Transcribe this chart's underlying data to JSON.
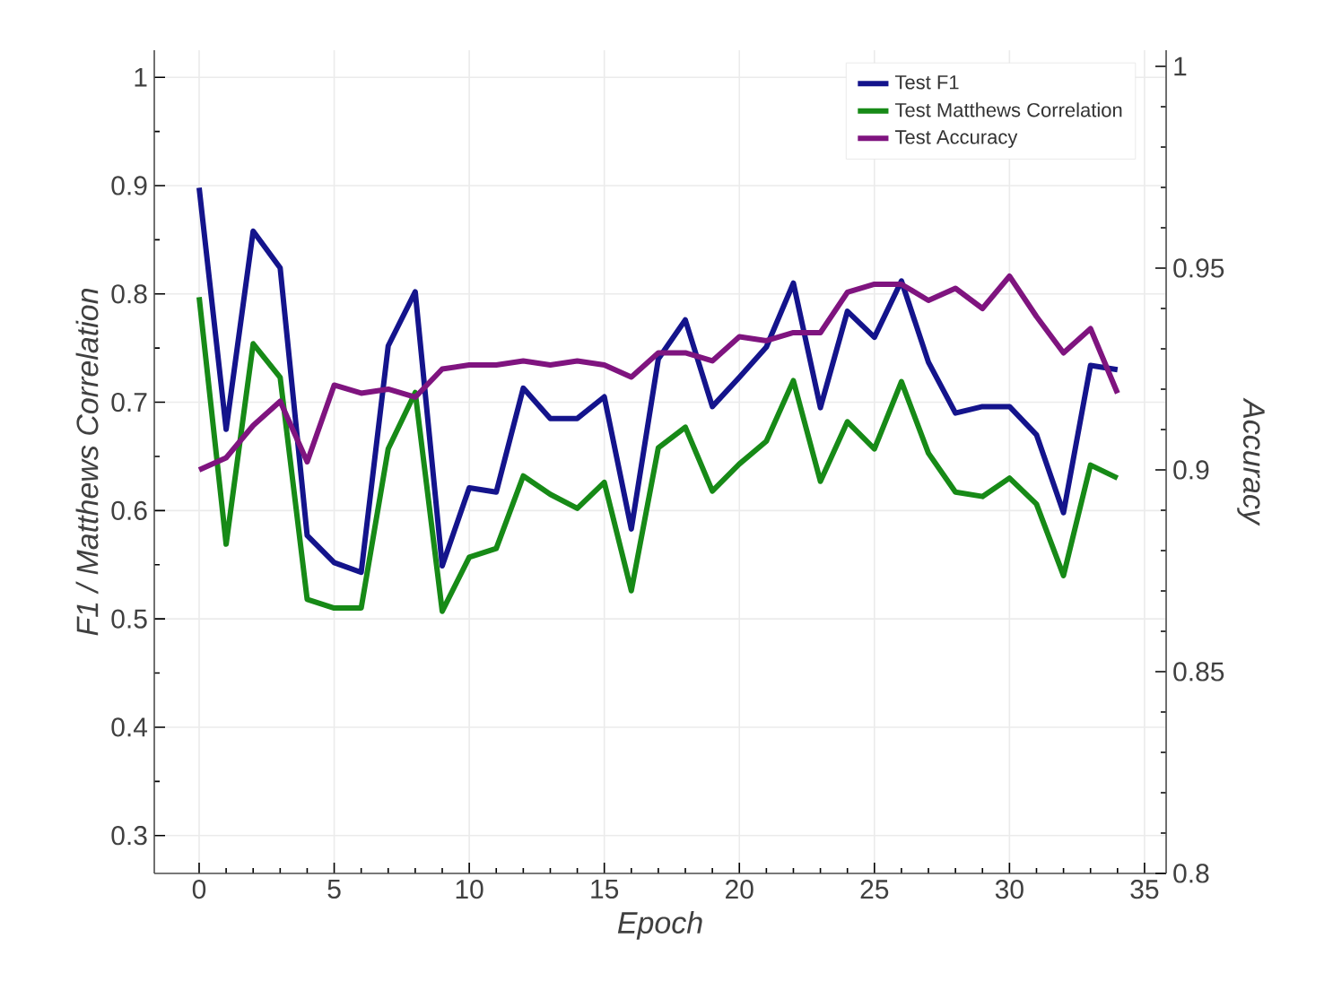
{
  "chart_data": {
    "type": "line",
    "xlabel": "Epoch",
    "ylabel": "F1 / Matthews Correlation",
    "y2label": "Accuracy",
    "x": [
      0,
      1,
      2,
      3,
      4,
      5,
      6,
      7,
      8,
      9,
      10,
      11,
      12,
      13,
      14,
      15,
      16,
      17,
      18,
      19,
      20,
      21,
      22,
      23,
      24,
      25,
      26,
      27,
      28,
      29,
      30,
      31,
      32,
      33,
      34
    ],
    "series": [
      {
        "name": "Test F1",
        "color": "#14148c",
        "values": [
          0.898,
          0.675,
          0.858,
          0.824,
          0.577,
          0.552,
          0.543,
          0.752,
          0.802,
          0.549,
          0.621,
          0.617,
          0.713,
          0.685,
          0.685,
          0.705,
          0.583,
          0.74,
          0.776,
          0.696,
          0.723,
          0.751,
          0.81,
          0.695,
          0.784,
          0.76,
          0.812,
          0.737,
          0.69,
          0.696,
          0.696,
          0.67,
          0.598,
          0.734,
          0.73
        ]
      },
      {
        "name": "Test Matthews Correlation",
        "color": "#178a17",
        "values": [
          0.797,
          0.569,
          0.754,
          0.723,
          0.518,
          0.51,
          0.51,
          0.657,
          0.709,
          0.507,
          0.557,
          0.565,
          0.632,
          0.615,
          0.602,
          0.626,
          0.526,
          0.658,
          0.677,
          0.618,
          0.643,
          0.664,
          0.72,
          0.627,
          0.682,
          0.657,
          0.719,
          0.653,
          0.617,
          0.613,
          0.63,
          0.606,
          0.54,
          0.642,
          0.63
        ]
      },
      {
        "name": "Test Accuracy",
        "color": "#7f147f",
        "axis": "y2",
        "values": [
          0.9,
          0.903,
          0.911,
          0.917,
          0.902,
          0.921,
          0.919,
          0.92,
          0.918,
          0.925,
          0.926,
          0.926,
          0.927,
          0.926,
          0.927,
          0.926,
          0.923,
          0.929,
          0.929,
          0.927,
          0.933,
          0.932,
          0.934,
          0.934,
          0.944,
          0.946,
          0.946,
          0.942,
          0.945,
          0.94,
          0.948,
          0.938,
          0.929,
          0.935,
          0.919
        ]
      }
    ],
    "xlim": [
      -1.66,
      35.8
    ],
    "xticks": [
      0,
      5,
      10,
      15,
      20,
      25,
      30,
      35
    ],
    "ylim": [
      0.265,
      1.025
    ],
    "yticks": [
      0.3,
      0.4,
      0.5,
      0.6,
      0.7,
      0.8,
      0.9,
      1
    ],
    "y2lim": [
      0.8,
      1.004
    ],
    "y2ticks": [
      0.8,
      0.85,
      0.9,
      0.95,
      1
    ],
    "grid": true,
    "legend": "top right",
    "marker": "none",
    "line_style": "solid"
  }
}
